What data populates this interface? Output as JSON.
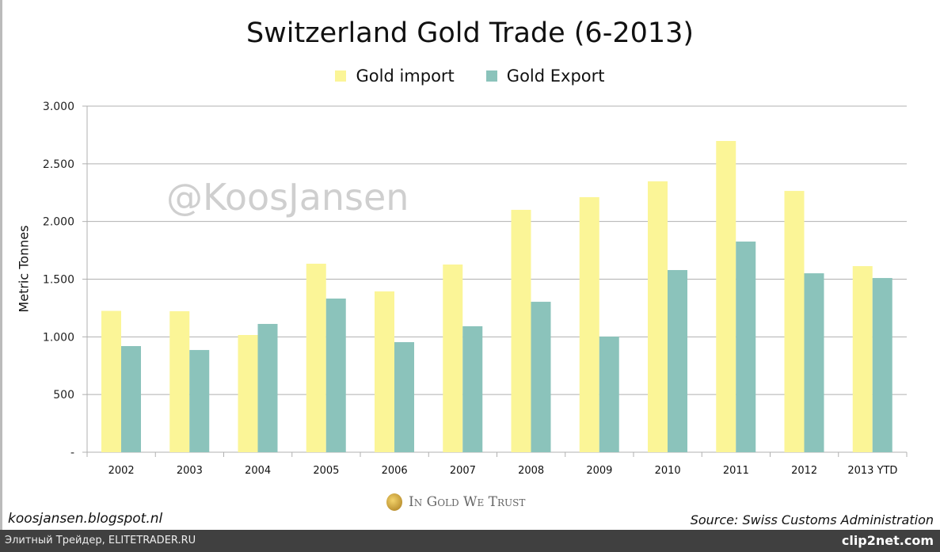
{
  "chart_data": {
    "type": "bar",
    "title": "Switzerland Gold Trade (6-2013)",
    "xlabel": "",
    "ylabel": "Metric Tonnes",
    "ylim": [
      0,
      3000
    ],
    "yticks": [
      "-",
      "500",
      "1.000",
      "1.500",
      "2.000",
      "2.500",
      "3.000"
    ],
    "grid": true,
    "legend_position": "top",
    "categories": [
      "2002",
      "2003",
      "2004",
      "2005",
      "2006",
      "2007",
      "2008",
      "2009",
      "2010",
      "2011",
      "2012",
      "2013 YTD"
    ],
    "series": [
      {
        "name": "Gold import",
        "color": "#fbf597",
        "values": [
          1225,
          1222,
          1016,
          1634,
          1394,
          1627,
          2101,
          2211,
          2348,
          2698,
          2265,
          1613
        ]
      },
      {
        "name": "Gold Export",
        "color": "#8bc3bb",
        "values": [
          920,
          886,
          1112,
          1332,
          954,
          1092,
          1304,
          1002,
          1579,
          1826,
          1551,
          1510
        ]
      }
    ]
  },
  "watermark": "@KoosJansen",
  "footer": {
    "left": "koosjansen.blogspot.nl",
    "right": "Source: Swiss Customs Administration",
    "logo_text": "In Gold We Trust"
  },
  "bottom_bar": {
    "left": "Элитный Трейдер, ELITETRADER.RU",
    "right": "clip2net.com"
  }
}
